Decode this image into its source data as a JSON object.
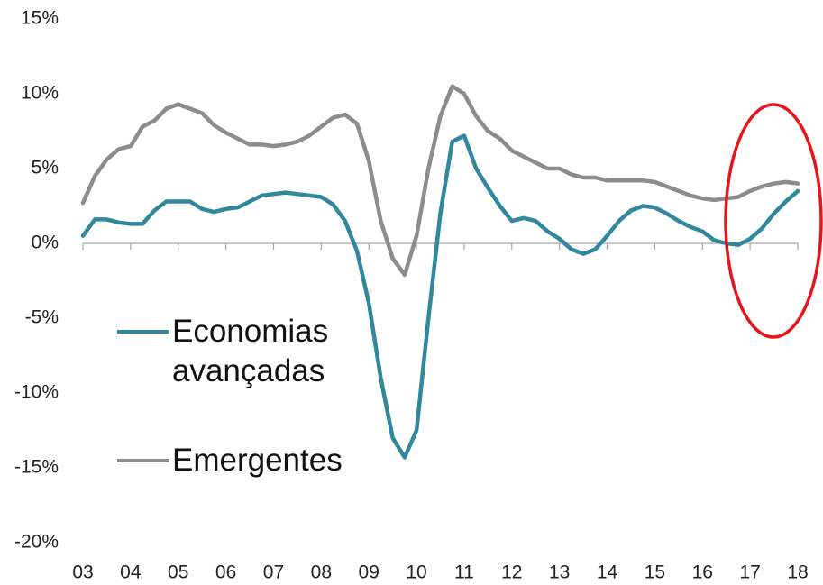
{
  "chart_data": {
    "type": "line",
    "x": [
      3,
      3.25,
      3.5,
      3.75,
      4,
      4.25,
      4.5,
      4.75,
      5,
      5.25,
      5.5,
      5.75,
      6,
      6.25,
      6.5,
      6.75,
      7,
      7.25,
      7.5,
      7.75,
      8,
      8.25,
      8.5,
      8.75,
      9,
      9.25,
      9.5,
      9.75,
      10,
      10.25,
      10.5,
      10.75,
      11,
      11.25,
      11.5,
      11.75,
      12,
      12.25,
      12.5,
      12.75,
      13,
      13.25,
      13.5,
      13.75,
      14,
      14.25,
      14.5,
      14.75,
      15,
      15.25,
      15.5,
      15.75,
      16,
      16.25,
      16.5,
      16.75,
      17,
      17.25,
      17.5,
      17.75,
      18
    ],
    "series": [
      {
        "name": "Economias avançadas",
        "color": "#31879c",
        "values": [
          0.5,
          1.6,
          1.6,
          1.4,
          1.3,
          1.3,
          2.2,
          2.8,
          2.8,
          2.8,
          2.3,
          2.1,
          2.3,
          2.4,
          2.8,
          3.2,
          3.3,
          3.4,
          3.3,
          3.2,
          3.1,
          2.6,
          1.5,
          -0.5,
          -4,
          -9,
          -13,
          -14.3,
          -12.5,
          -5,
          2,
          6.8,
          7.2,
          5,
          3.7,
          2.5,
          1.5,
          1.7,
          1.5,
          0.8,
          0.3,
          -0.4,
          -0.7,
          -0.4,
          0.5,
          1.5,
          2.2,
          2.5,
          2.4,
          2,
          1.5,
          1.1,
          0.8,
          0.2,
          0,
          -0.1,
          0.3,
          1,
          2,
          2.8,
          3.5
        ]
      },
      {
        "name": "Emergentes",
        "color": "#8c8c8c",
        "values": [
          2.7,
          4.5,
          5.6,
          6.3,
          6.5,
          7.8,
          8.2,
          9.0,
          9.3,
          9.0,
          8.7,
          7.9,
          7.4,
          7.0,
          6.6,
          6.6,
          6.5,
          6.6,
          6.8,
          7.2,
          7.8,
          8.4,
          8.6,
          8.0,
          5.5,
          1.5,
          -1.0,
          -2.1,
          0.5,
          5,
          8.5,
          10.5,
          10.0,
          8.5,
          7.5,
          7.0,
          6.2,
          5.8,
          5.4,
          5.0,
          5.0,
          4.6,
          4.4,
          4.4,
          4.2,
          4.2,
          4.2,
          4.2,
          4.1,
          3.8,
          3.5,
          3.2,
          3.0,
          2.9,
          3.0,
          3.1,
          3.5,
          3.8,
          4.0,
          4.1,
          4.0
        ]
      }
    ],
    "xlim": [
      3,
      18
    ],
    "xticks": [
      {
        "value": 3,
        "label": "03"
      },
      {
        "value": 4,
        "label": "04"
      },
      {
        "value": 5,
        "label": "05"
      },
      {
        "value": 6,
        "label": "06"
      },
      {
        "value": 7,
        "label": "07"
      },
      {
        "value": 8,
        "label": "08"
      },
      {
        "value": 9,
        "label": "09"
      },
      10,
      11,
      12,
      13,
      14,
      15,
      16,
      17,
      18
    ],
    "ylim": [
      -20,
      15
    ],
    "yticks": [
      {
        "value": -20,
        "label": "-20%"
      },
      {
        "value": -15,
        "label": "-15%"
      },
      {
        "value": -10,
        "label": "-10%"
      },
      {
        "value": -5,
        "label": "-5%"
      },
      {
        "value": 0,
        "label": "0%"
      },
      {
        "value": 5,
        "label": "5%"
      },
      {
        "value": 10,
        "label": "10%"
      },
      {
        "value": 15,
        "label": "15%"
      }
    ],
    "grid": false
  }
}
